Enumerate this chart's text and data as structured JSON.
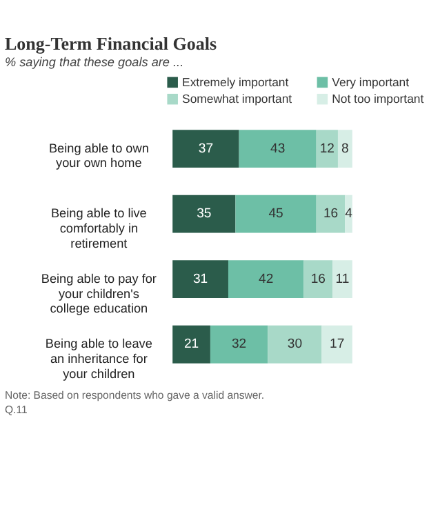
{
  "chart_data": {
    "type": "bar",
    "orientation": "horizontal",
    "stacked": true,
    "title": "Long-Term Financial Goals",
    "subtitle": "% saying that these goals are ...",
    "categories": [
      "Being able to own\nyour own home",
      "Being able to live\ncomfortably in\nretirement",
      "Being able to pay for\nyour children's\ncollege education",
      "Being able to leave\nan inheritance for\nyour children"
    ],
    "series": [
      {
        "name": "Extremely important",
        "color": "#2b5c4b",
        "values": [
          37,
          35,
          31,
          21
        ]
      },
      {
        "name": "Very important",
        "color": "#6dbfa6",
        "values": [
          43,
          45,
          42,
          32
        ]
      },
      {
        "name": "Somewhat important",
        "color": "#a8d9c8",
        "values": [
          12,
          16,
          16,
          30
        ]
      },
      {
        "name": "Not too important",
        "color": "#d7eee6",
        "values": [
          8,
          4,
          11,
          17
        ]
      }
    ],
    "data_labels": true,
    "legend": "top",
    "tick_labels": "y",
    "grid": false,
    "annotations": [
      "Note: Based on respondents who gave a valid answer.",
      "Q.11"
    ]
  }
}
